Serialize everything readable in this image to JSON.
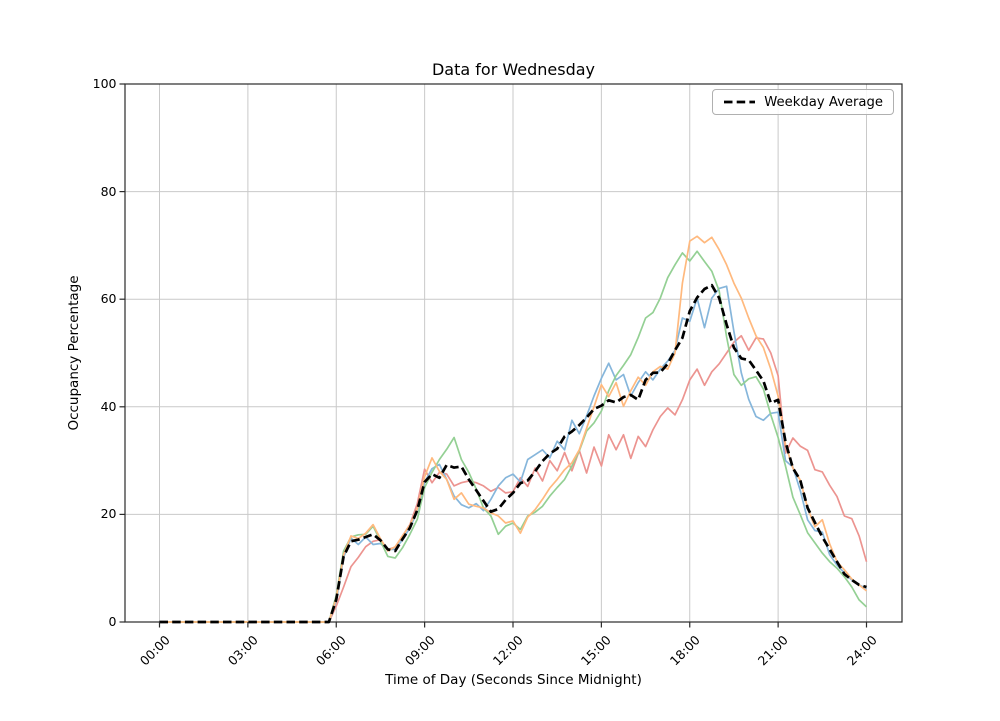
{
  "chart_data": {
    "type": "line",
    "title": "Data for Wednesday",
    "xlabel": "Time of Day (Seconds Since Midnight)",
    "ylabel": "Occupancy Percentage",
    "x_unit": "hours_since_midnight",
    "x_start": 0,
    "x_step": 0.25,
    "ylim": [
      0,
      100
    ],
    "xlim_hours": [
      -1.17,
      25.2
    ],
    "grid": true,
    "x_tick_hours": [
      0,
      3,
      6,
      9,
      12,
      15,
      18,
      21,
      24
    ],
    "x_tick_labels": [
      "00:00",
      "03:00",
      "06:00",
      "09:00",
      "12:00",
      "15:00",
      "18:00",
      "21:00",
      "24:00"
    ],
    "y_ticks": [
      0,
      20,
      40,
      60,
      80,
      100
    ],
    "y_tick_labels": [
      "0",
      "20",
      "40",
      "60",
      "80",
      "100"
    ],
    "legend": {
      "position": "upper right",
      "label": "Weekday Average",
      "line_style": "dashed",
      "line_color": "#000000"
    },
    "series": [
      {
        "id": "series-1-red",
        "color": "#EC9490",
        "style": "solid",
        "values": [
          0,
          0,
          0,
          0,
          0,
          0,
          0,
          0,
          0,
          0,
          0,
          0,
          0,
          0,
          0,
          0,
          0,
          0,
          0,
          0,
          0,
          0,
          0,
          0,
          3,
          6.5,
          10.3,
          12,
          14,
          15,
          15.3,
          13.5,
          13.9,
          16,
          18.1,
          22,
          28.4,
          25.9,
          27.8,
          27.5,
          25.3,
          25.9,
          26.2,
          25.9,
          25.3,
          24.3,
          25,
          24,
          24.2,
          26.8,
          25.2,
          28.6,
          26.2,
          30,
          28.1,
          31.5,
          28.1,
          31.9,
          27.7,
          32.5,
          29,
          34.8,
          32,
          34.8,
          30.4,
          34.5,
          32.6,
          35.7,
          38.2,
          39.8,
          38.5,
          41.3,
          45,
          47,
          44,
          46.5,
          48,
          50,
          52,
          53.2,
          50.5,
          52.8,
          52.6,
          50,
          45.8,
          31.4,
          34.2,
          32.7,
          31.9,
          28.3,
          27.9,
          25.4,
          23.3,
          19.7,
          19.2,
          16,
          11.2
        ]
      },
      {
        "id": "series-2-blue",
        "color": "#86B6DB",
        "style": "solid",
        "values": [
          0,
          0,
          0,
          0,
          0,
          0,
          0,
          0,
          0,
          0,
          0,
          0,
          0,
          0,
          0,
          0,
          0,
          0,
          0,
          0,
          0,
          0,
          0,
          0,
          4,
          12,
          15.6,
          14.4,
          15.8,
          14.4,
          14.6,
          13.5,
          13.5,
          15.3,
          17.5,
          20.5,
          26,
          28.5,
          29.3,
          26.5,
          23.4,
          21.8,
          21.2,
          22,
          20.7,
          22.8,
          25.3,
          26.8,
          27.5,
          26,
          30.2,
          31.1,
          32,
          30.5,
          33.6,
          32,
          37.5,
          35,
          38.3,
          42,
          45.3,
          48.1,
          45,
          46,
          42,
          44.5,
          46.5,
          45,
          47,
          48.5,
          50.5,
          56.5,
          55.9,
          60.2,
          54.7,
          60.2,
          62,
          62.4,
          54,
          46.3,
          41.4,
          38.2,
          37.5,
          38.8,
          39,
          30,
          28.8,
          24.5,
          19,
          17,
          16.7,
          12.5,
          10.6,
          9.1,
          7.8,
          6.9,
          6.2
        ]
      },
      {
        "id": "series-3-green",
        "color": "#94D094",
        "style": "solid",
        "values": [
          0,
          0,
          0,
          0,
          0,
          0,
          0,
          0,
          0,
          0,
          0,
          0,
          0,
          0,
          0,
          0,
          0,
          0,
          0,
          0,
          0,
          0,
          0,
          0,
          5,
          13.2,
          15.8,
          16.2,
          16.3,
          17.8,
          15.1,
          12.2,
          11.9,
          13.8,
          16.3,
          19.1,
          25,
          27.8,
          30.2,
          32.1,
          34.3,
          30.2,
          27.8,
          24.7,
          21.2,
          19.7,
          16.3,
          17.8,
          18.4,
          17.2,
          19.7,
          20.4,
          21.5,
          23.4,
          25,
          26.5,
          29,
          31.8,
          35.5,
          37,
          39.2,
          43,
          45.8,
          47.7,
          49.7,
          52.9,
          56.5,
          57.5,
          60.2,
          64,
          66.4,
          68.6,
          67.1,
          68.9,
          67,
          65.2,
          61.5,
          53,
          46,
          44,
          45.2,
          45.6,
          43.3,
          38.5,
          34.3,
          29,
          23.2,
          20,
          16.6,
          14.7,
          12.8,
          11.2,
          10,
          8.4,
          6.5,
          4.1,
          2.8
        ]
      },
      {
        "id": "series-4-orange",
        "color": "#FFB97E",
        "style": "solid",
        "values": [
          0,
          0,
          0,
          0,
          0,
          0,
          0,
          0,
          0,
          0,
          0,
          0,
          0,
          0,
          0,
          0,
          0,
          0,
          0,
          0,
          0,
          0,
          0,
          0,
          4.5,
          12.5,
          16,
          15.5,
          16.5,
          18.1,
          15.5,
          13.2,
          14,
          16,
          18,
          21,
          27,
          30.5,
          28,
          26.5,
          22.8,
          24,
          21.9,
          21.5,
          21.2,
          20.3,
          19.7,
          18.4,
          18.8,
          16.5,
          19.5,
          20.9,
          22.8,
          24.9,
          26.5,
          28.3,
          29.6,
          32,
          36,
          40,
          44.1,
          41.9,
          44.5,
          40.1,
          43,
          45.5,
          44,
          46.5,
          47.5,
          47,
          50,
          63,
          70.8,
          71.7,
          70.5,
          71.5,
          69.2,
          66.4,
          63,
          60.2,
          56.5,
          53.2,
          51,
          47,
          42,
          33,
          28.6,
          26.4,
          21.2,
          17.7,
          19,
          14.5,
          11.2,
          9.7,
          8,
          6.9,
          5.8
        ]
      }
    ],
    "average_series": {
      "id": "weekday-average",
      "label": "Weekday Average",
      "color": "#000000",
      "style": "dashed",
      "values": [
        0,
        0,
        0,
        0,
        0,
        0,
        0,
        0,
        0,
        0,
        0,
        0,
        0,
        0,
        0,
        0,
        0,
        0,
        0,
        0,
        0,
        0,
        0,
        0,
        4.2,
        12.2,
        15,
        15.3,
        15.8,
        16.3,
        15.2,
        13.5,
        13.2,
        15.4,
        17.5,
        20.8,
        26,
        27.5,
        26.8,
        29.2,
        28.7,
        28.9,
        26.5,
        24.5,
        22.5,
        20.5,
        21,
        22.7,
        24,
        25.8,
        26.3,
        28,
        29.9,
        31.3,
        32.2,
        34.5,
        35.4,
        36.6,
        38,
        39.6,
        40.2,
        41.2,
        40.8,
        41.8,
        42.2,
        41.3,
        45,
        46.3,
        46.4,
        48,
        50.5,
        52.8,
        57.8,
        60.3,
        61.9,
        62.6,
        60.2,
        55.3,
        51,
        49,
        48.7,
        46.8,
        44.8,
        40.7,
        41.3,
        33.5,
        28.6,
        26.4,
        21.2,
        18.5,
        15.8,
        13.5,
        11.2,
        8.9,
        7.8,
        6.9,
        6.5
      ]
    },
    "style_hints": {
      "grid_color": "#C9C9C9",
      "spine_color": "#2a2a2a",
      "series_line_width": 1.7,
      "average_line_width": 2.7
    }
  }
}
